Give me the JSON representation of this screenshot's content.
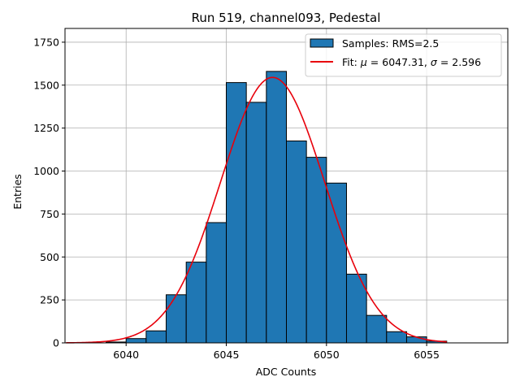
{
  "chart_data": {
    "type": "bar",
    "title": "Run 519, channel093, Pedestal",
    "xlabel": "ADC Counts",
    "ylabel": "Entries",
    "xlim": [
      6036.95,
      6059.05
    ],
    "ylim": [
      0,
      1830
    ],
    "grid": true,
    "x_ticks": [
      6040,
      6045,
      6050,
      6055
    ],
    "y_ticks": [
      0,
      250,
      500,
      750,
      1000,
      1250,
      1500,
      1750
    ],
    "histogram": {
      "name": "Samples: RMS=2.5",
      "color": "#1f77b4",
      "bin_edges": [
        6039,
        6040,
        6041,
        6042,
        6043,
        6044,
        6045,
        6046,
        6047,
        6048,
        6049,
        6050,
        6051,
        6052,
        6053,
        6054,
        6055,
        6056
      ],
      "counts": [
        5,
        25,
        70,
        280,
        470,
        700,
        1515,
        1400,
        1580,
        1175,
        1080,
        930,
        400,
        160,
        65,
        35,
        10
      ]
    },
    "fit": {
      "name": "Fit: μ = 6047.31, σ = 2.596",
      "label_prefix": "Fit:",
      "mu_symbol": "μ",
      "mu_value": "= 6047.31,",
      "sigma_symbol": "σ",
      "sigma_value": "= 2.596",
      "color": "#e8000b",
      "mu": 6047.31,
      "sigma": 2.596,
      "amplitude": 1545,
      "x_range": [
        6037,
        6056
      ]
    },
    "legend_position": "top-right"
  }
}
